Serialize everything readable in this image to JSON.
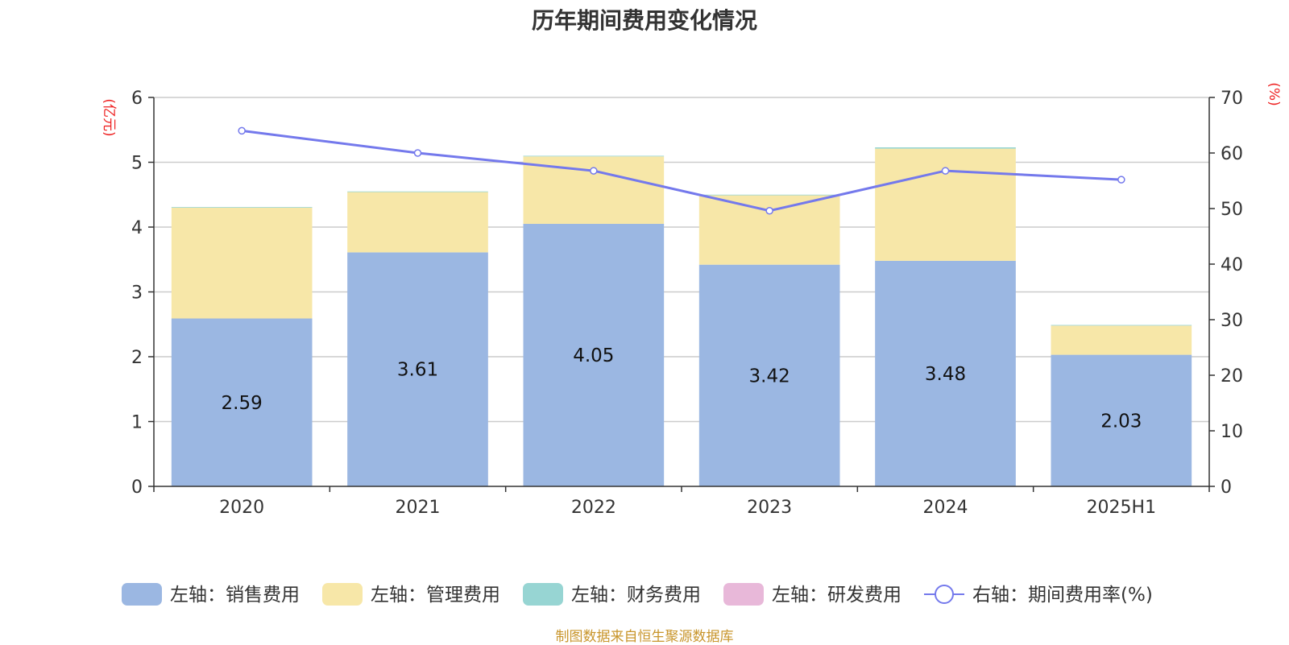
{
  "chart_data": {
    "type": "bar",
    "title": "历年期间费用变化情况",
    "categories": [
      "2020",
      "2021",
      "2022",
      "2023",
      "2024",
      "2025H1"
    ],
    "left_axis": {
      "unit": "(亿元)",
      "ylim": [
        0,
        6
      ],
      "ticks": [
        "0",
        "1",
        "2",
        "3",
        "4",
        "5",
        "6"
      ]
    },
    "right_axis": {
      "unit": "(%)",
      "ylim": [
        0,
        70
      ],
      "ticks": [
        "0",
        "10",
        "20",
        "30",
        "40",
        "50",
        "60",
        "70"
      ]
    },
    "grid": true,
    "legend_position": "bottom",
    "series": [
      {
        "name": "左轴：销售费用",
        "kind": "bar",
        "axis": "left",
        "color": "#9bb7e2",
        "values": [
          2.59,
          3.61,
          4.05,
          3.42,
          3.48,
          2.03
        ],
        "labels": [
          "2.59",
          "3.61",
          "4.05",
          "3.42",
          "3.48",
          "2.03"
        ]
      },
      {
        "name": "左轴：管理费用",
        "kind": "bar",
        "axis": "left",
        "color": "#f7e7a8",
        "values": [
          1.71,
          0.93,
          1.04,
          1.07,
          1.73,
          0.45
        ]
      },
      {
        "name": "左轴：财务费用",
        "kind": "bar",
        "axis": "left",
        "color": "#97d5d3",
        "values": [
          0.01,
          0.01,
          0.01,
          0.01,
          0.02,
          0.01
        ]
      },
      {
        "name": "左轴：研发费用",
        "kind": "bar",
        "axis": "left",
        "color": "#e8b8d9",
        "values": [
          0,
          0,
          0,
          0,
          0,
          0
        ]
      },
      {
        "name": "右轴：期间费用率(%)",
        "kind": "line",
        "axis": "right",
        "color": "#7479ec",
        "values": [
          64.0,
          60.0,
          56.8,
          49.6,
          56.8,
          55.2
        ]
      }
    ]
  },
  "source_note": "制图数据来自恒生聚源数据库"
}
